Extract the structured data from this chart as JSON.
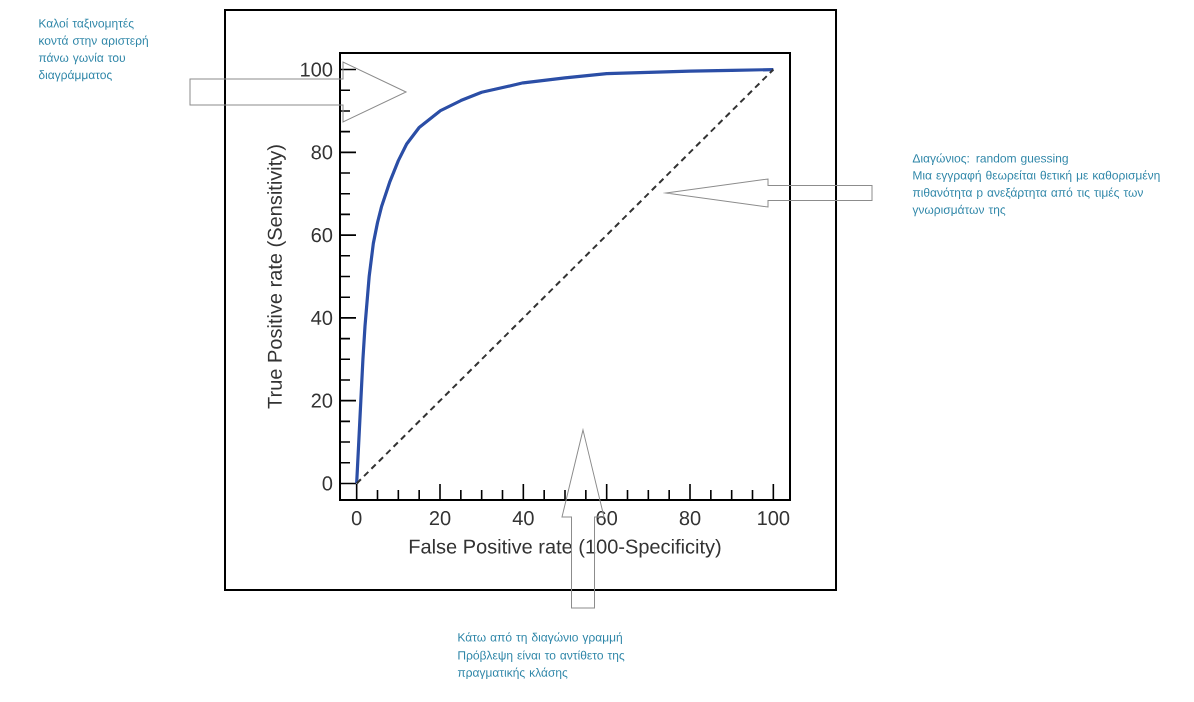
{
  "chart_data": {
    "type": "line",
    "xlabel": "False Positive rate (100-Specificity)",
    "ylabel": "True Positive rate (Sensitivity)",
    "xlim": [
      -4,
      104
    ],
    "ylim": [
      -4,
      104
    ],
    "xticks": [
      0,
      {
        "value": 5,
        "label": null
      },
      {
        "value": 10,
        "label": null
      },
      {
        "value": 15,
        "label": null
      },
      20,
      {
        "value": 25,
        "label": null
      },
      {
        "value": 30,
        "label": null
      },
      {
        "value": 35,
        "label": null
      },
      40,
      {
        "value": 45,
        "label": null
      },
      {
        "value": 50,
        "label": null
      },
      {
        "value": 55,
        "label": null
      },
      60,
      {
        "value": 65,
        "label": null
      },
      {
        "value": 70,
        "label": null
      },
      {
        "value": 75,
        "label": null
      },
      80,
      {
        "value": 85,
        "label": null
      },
      {
        "value": 90,
        "label": null
      },
      {
        "value": 95,
        "label": null
      },
      100
    ],
    "yticks": [
      0,
      {
        "value": 5,
        "label": null
      },
      {
        "value": 10,
        "label": null
      },
      {
        "value": 15,
        "label": null
      },
      20,
      {
        "value": 25,
        "label": null
      },
      {
        "value": 30,
        "label": null
      },
      {
        "value": 35,
        "label": null
      },
      40,
      {
        "value": 45,
        "label": null
      },
      {
        "value": 50,
        "label": null
      },
      {
        "value": 55,
        "label": null
      },
      60,
      {
        "value": 65,
        "label": null
      },
      {
        "value": 70,
        "label": null
      },
      {
        "value": 75,
        "label": null
      },
      80,
      {
        "value": 85,
        "label": null
      },
      {
        "value": 90,
        "label": null
      },
      {
        "value": 95,
        "label": null
      },
      100
    ],
    "series": [
      {
        "color": "#2b4ea6",
        "line_style": "solid",
        "x": [
          0,
          0.5,
          1,
          1.5,
          2,
          3,
          4,
          5,
          6,
          8,
          10,
          12,
          15,
          20,
          25,
          30,
          40,
          50,
          60,
          70,
          80,
          90,
          100
        ],
        "values": [
          0,
          10,
          20,
          30,
          38,
          50,
          58,
          63,
          67,
          73,
          78,
          82,
          86,
          90,
          92.5,
          94.5,
          96.8,
          98,
          99,
          99.3,
          99.6,
          99.8,
          100
        ]
      },
      {
        "color": "#333333",
        "line_style": "dashed",
        "x": [
          0,
          100
        ],
        "values": [
          0,
          100
        ]
      }
    ],
    "annotations": [
      "Καλοί ταξινομητές κοντά στην αριστερή πάνω γωνία του διαγράμματος",
      "Διαγώνιος: random guessing",
      "Μια εγγραφή θεωρείται θετική με καθορισμένη πιθανότητα p ανεξάρτητα από τις τιμές των γνωρισμάτων της",
      "Κάτω από τη διαγώνιο γραμμή",
      "Πρόβλεψη είναι το αντίθετο της πραγματικής κλάσης"
    ]
  }
}
